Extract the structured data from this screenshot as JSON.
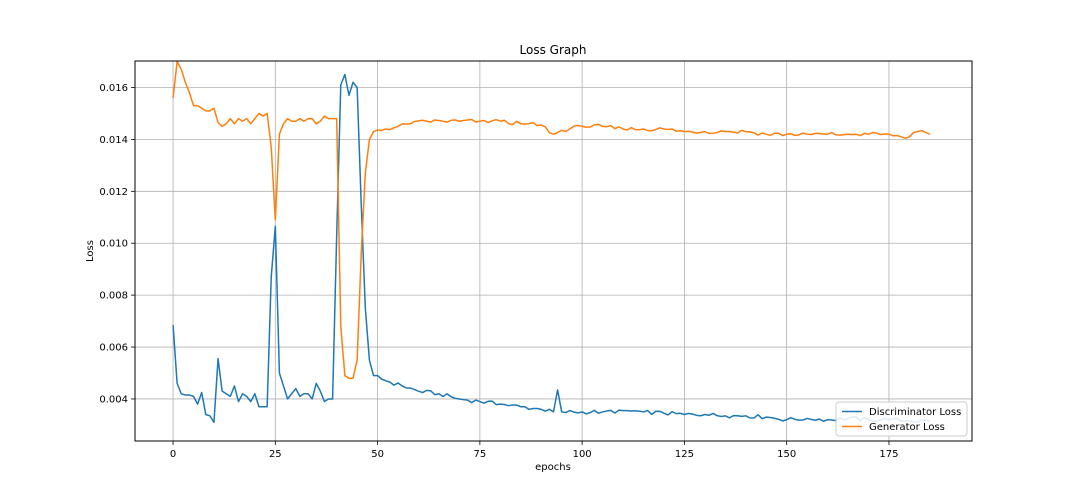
{
  "chart_data": {
    "type": "line",
    "title": "Loss Graph",
    "xlabel": "epochs",
    "ylabel": "Loss",
    "xlim": [
      -9.3,
      195.3
    ],
    "ylim": [
      0.00238,
      0.01702
    ],
    "xticks": [
      0,
      25,
      50,
      75,
      100,
      125,
      150,
      175
    ],
    "yticks": [
      0.004,
      0.006,
      0.008,
      0.01,
      0.012,
      0.014,
      0.016
    ],
    "ytick_labels": [
      "0.004",
      "0.006",
      "0.008",
      "0.010",
      "0.012",
      "0.014",
      "0.016"
    ],
    "grid": true,
    "legend_position": "lower-right",
    "series": [
      {
        "name": "Discriminator Loss",
        "color": "#1f77b4",
        "anchors": [
          [
            0,
            0.00685
          ],
          [
            1,
            0.0046
          ],
          [
            2,
            0.0042
          ],
          [
            3,
            0.00415
          ],
          [
            4,
            0.00415
          ],
          [
            5,
            0.0041
          ],
          [
            6,
            0.0038
          ],
          [
            7,
            0.00425
          ],
          [
            8,
            0.0034
          ],
          [
            9,
            0.00335
          ],
          [
            10,
            0.0031
          ],
          [
            11,
            0.00555
          ],
          [
            12,
            0.0043
          ],
          [
            13,
            0.0042
          ],
          [
            14,
            0.0041
          ],
          [
            15,
            0.0045
          ],
          [
            16,
            0.0039
          ],
          [
            17,
            0.0042
          ],
          [
            18,
            0.0041
          ],
          [
            19,
            0.0039
          ],
          [
            20,
            0.0042
          ],
          [
            21,
            0.0037
          ],
          [
            22,
            0.0037
          ],
          [
            23,
            0.0037
          ],
          [
            24,
            0.0087
          ],
          [
            25,
            0.01065
          ],
          [
            26,
            0.005
          ],
          [
            27,
            0.0045
          ],
          [
            28,
            0.004
          ],
          [
            29,
            0.0042
          ],
          [
            30,
            0.0044
          ],
          [
            31,
            0.0041
          ],
          [
            32,
            0.0042
          ],
          [
            33,
            0.0042
          ],
          [
            34,
            0.004
          ],
          [
            35,
            0.0046
          ],
          [
            36,
            0.0043
          ],
          [
            37,
            0.0039
          ],
          [
            38,
            0.004
          ],
          [
            39,
            0.004
          ],
          [
            40,
            0.0103
          ],
          [
            41,
            0.0161
          ],
          [
            42,
            0.0165
          ],
          [
            43,
            0.0157
          ],
          [
            44,
            0.0162
          ],
          [
            45,
            0.016
          ],
          [
            46,
            0.0115
          ],
          [
            47,
            0.0075
          ],
          [
            48,
            0.0055
          ],
          [
            49,
            0.0049
          ],
          [
            52,
            0.0047
          ],
          [
            56,
            0.0045
          ],
          [
            60,
            0.0043
          ],
          [
            65,
            0.0042
          ],
          [
            70,
            0.004
          ],
          [
            75,
            0.0039
          ],
          [
            80,
            0.0038
          ],
          [
            85,
            0.0037
          ],
          [
            90,
            0.0036
          ],
          [
            93,
            0.0035
          ],
          [
            94,
            0.00435
          ],
          [
            95,
            0.0035
          ],
          [
            100,
            0.0035
          ],
          [
            105,
            0.0035
          ],
          [
            110,
            0.00355
          ],
          [
            115,
            0.0035
          ],
          [
            120,
            0.00345
          ],
          [
            125,
            0.0034
          ],
          [
            130,
            0.0034
          ],
          [
            135,
            0.00335
          ],
          [
            140,
            0.00335
          ],
          [
            145,
            0.0033
          ],
          [
            150,
            0.0032
          ],
          [
            155,
            0.00325
          ],
          [
            160,
            0.0032
          ],
          [
            165,
            0.00325
          ],
          [
            170,
            0.0032
          ],
          [
            175,
            0.0032
          ],
          [
            180,
            0.00315
          ],
          [
            185,
            0.00315
          ]
        ]
      },
      {
        "name": "Generator Loss",
        "color": "#ff7f0e",
        "anchors": [
          [
            0,
            0.0156
          ],
          [
            1,
            0.017
          ],
          [
            2,
            0.0167
          ],
          [
            3,
            0.0162
          ],
          [
            4,
            0.0158
          ],
          [
            5,
            0.0153
          ],
          [
            6,
            0.0153
          ],
          [
            7,
            0.0152
          ],
          [
            8,
            0.0151
          ],
          [
            9,
            0.0151
          ],
          [
            10,
            0.0152
          ],
          [
            11,
            0.01465
          ],
          [
            12,
            0.0145
          ],
          [
            13,
            0.0146
          ],
          [
            14,
            0.0148
          ],
          [
            15,
            0.0146
          ],
          [
            16,
            0.0148
          ],
          [
            17,
            0.0147
          ],
          [
            18,
            0.0148
          ],
          [
            19,
            0.0146
          ],
          [
            20,
            0.0148
          ],
          [
            21,
            0.015
          ],
          [
            22,
            0.0149
          ],
          [
            23,
            0.015
          ],
          [
            24,
            0.0137
          ],
          [
            25,
            0.0109
          ],
          [
            26,
            0.0142
          ],
          [
            27,
            0.0146
          ],
          [
            28,
            0.0148
          ],
          [
            29,
            0.0147
          ],
          [
            30,
            0.0147
          ],
          [
            31,
            0.0148
          ],
          [
            32,
            0.0147
          ],
          [
            33,
            0.0148
          ],
          [
            34,
            0.0148
          ],
          [
            35,
            0.0146
          ],
          [
            36,
            0.0147
          ],
          [
            37,
            0.0149
          ],
          [
            38,
            0.0148
          ],
          [
            39,
            0.0148
          ],
          [
            40,
            0.0148
          ],
          [
            41,
            0.0068
          ],
          [
            42,
            0.0049
          ],
          [
            43,
            0.0048
          ],
          [
            44,
            0.0048
          ],
          [
            45,
            0.0055
          ],
          [
            46,
            0.0096
          ],
          [
            47,
            0.0127
          ],
          [
            48,
            0.014
          ],
          [
            49,
            0.0143
          ],
          [
            52,
            0.0144
          ],
          [
            55,
            0.0145
          ],
          [
            58,
            0.0146
          ],
          [
            62,
            0.0147
          ],
          [
            66,
            0.0147
          ],
          [
            70,
            0.0147
          ],
          [
            75,
            0.0147
          ],
          [
            80,
            0.0147
          ],
          [
            85,
            0.0146
          ],
          [
            90,
            0.01455
          ],
          [
            93,
            0.0142
          ],
          [
            95,
            0.01435
          ],
          [
            100,
            0.0145
          ],
          [
            105,
            0.0145
          ],
          [
            110,
            0.0144
          ],
          [
            115,
            0.0144
          ],
          [
            120,
            0.0144
          ],
          [
            125,
            0.0143
          ],
          [
            130,
            0.0143
          ],
          [
            135,
            0.0143
          ],
          [
            140,
            0.0143
          ],
          [
            145,
            0.0142
          ],
          [
            150,
            0.0142
          ],
          [
            155,
            0.0142
          ],
          [
            160,
            0.0142
          ],
          [
            165,
            0.0142
          ],
          [
            170,
            0.0142
          ],
          [
            175,
            0.0142
          ],
          [
            178,
            0.0141
          ],
          [
            180,
            0.0141
          ],
          [
            182,
            0.0143
          ],
          [
            185,
            0.0142
          ]
        ]
      }
    ]
  }
}
